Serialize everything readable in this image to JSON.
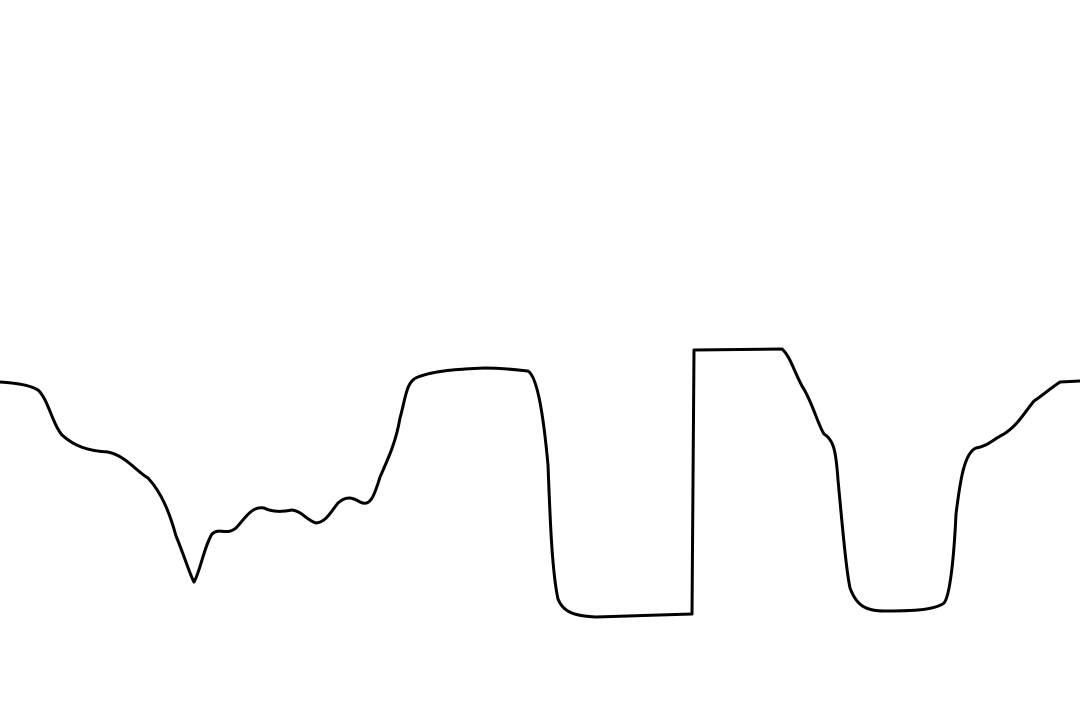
{
  "diagram": {
    "background_color": "#ffffff",
    "line_color": "#000000",
    "curve": {
      "name": "profile-line"
    }
  }
}
